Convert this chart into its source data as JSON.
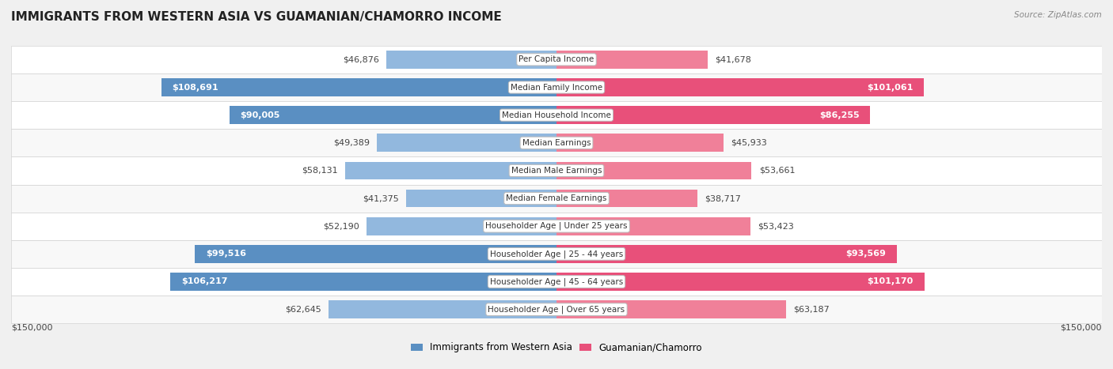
{
  "title": "IMMIGRANTS FROM WESTERN ASIA VS GUAMANIAN/CHAMORRO INCOME",
  "source": "Source: ZipAtlas.com",
  "categories": [
    "Per Capita Income",
    "Median Family Income",
    "Median Household Income",
    "Median Earnings",
    "Median Male Earnings",
    "Median Female Earnings",
    "Householder Age | Under 25 years",
    "Householder Age | 25 - 44 years",
    "Householder Age | 45 - 64 years",
    "Householder Age | Over 65 years"
  ],
  "left_values": [
    46876,
    108691,
    90005,
    49389,
    58131,
    41375,
    52190,
    99516,
    106217,
    62645
  ],
  "right_values": [
    41678,
    101061,
    86255,
    45933,
    53661,
    38717,
    53423,
    93569,
    101170,
    63187
  ],
  "left_color": "#92b8de",
  "right_color": "#f08099",
  "left_color_strong": "#5a8fc2",
  "right_color_strong": "#e8507a",
  "max_value": 150000,
  "legend_left": "Immigrants from Western Asia",
  "legend_right": "Guamanian/Chamorro",
  "bg_color": "#f0f0f0",
  "row_bg_even": "#f8f8f8",
  "row_bg_odd": "#ffffff",
  "threshold": 65000,
  "title_fontsize": 11,
  "label_fontsize": 8,
  "cat_fontsize": 7.5,
  "axis_fontsize": 8
}
